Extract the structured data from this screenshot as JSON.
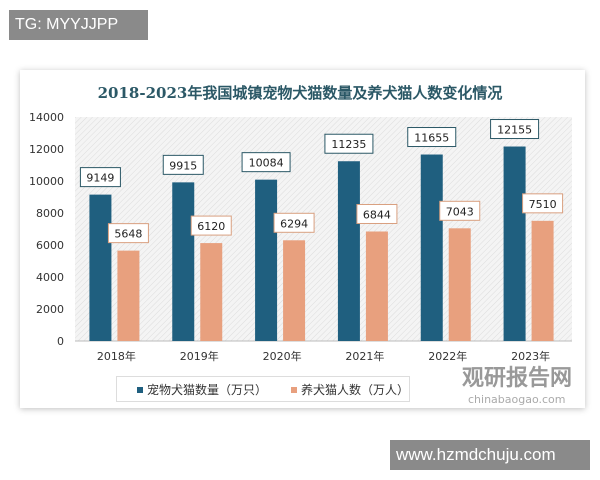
{
  "watermark_top": "TG: MYYJJPP",
  "watermark_bottom": "www.hzmdchuju.com",
  "source_logo": {
    "name": "观研报告网",
    "url": "chinabaogao.com"
  },
  "chart_data": {
    "type": "bar",
    "title": "2018-2023年我国城镇宠物犬猫数量及养犬猫人数变化情况",
    "categories": [
      "2018年",
      "2019年",
      "2020年",
      "2021年",
      "2022年",
      "2023年"
    ],
    "series": [
      {
        "name": "宠物犬猫数量（万只）",
        "color": "#1f5f7f",
        "values": [
          9149,
          9915,
          10084,
          11235,
          11655,
          12155
        ]
      },
      {
        "name": "养犬猫人数（万人）",
        "color": "#e8a07e",
        "values": [
          5648,
          6120,
          6294,
          6844,
          7043,
          7510
        ]
      }
    ],
    "ylim": [
      0,
      14000
    ],
    "yticks": [
      "0",
      "2000",
      "4000",
      "6000",
      "8000",
      "10000",
      "12000",
      "14000"
    ],
    "legend": "bottom",
    "grid": false
  }
}
